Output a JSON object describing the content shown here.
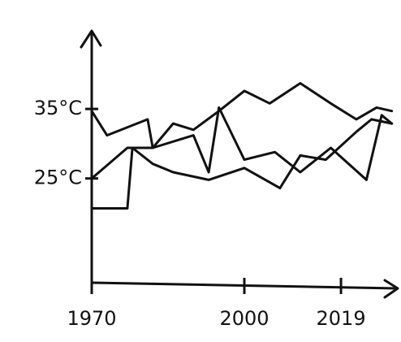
{
  "chart_data": {
    "type": "line",
    "xlim": [
      1970,
      2030
    ],
    "xticks": [
      1970,
      2000,
      2019
    ],
    "ylim": [
      10,
      46
    ],
    "yticks": [
      {
        "value": 25,
        "label": "25°C"
      },
      {
        "value": 35,
        "label": "35°C"
      }
    ],
    "series": [
      {
        "color": "#111111",
        "x": [
          1970,
          1973,
          1981,
          1982,
          1986,
          1990,
          1995,
          2000,
          2005,
          2011,
          2017,
          2022,
          2026,
          2029
        ],
        "values": [
          34.7,
          31.2,
          33.5,
          29.4,
          32.9,
          32,
          34.7,
          37.6,
          35.8,
          38.7,
          35.8,
          33.5,
          35.2,
          34.7
        ]
      },
      {
        "color": "#111111",
        "x": [
          1970,
          1977,
          1982,
          1990,
          1993,
          1995,
          2000,
          2006,
          2011,
          2017,
          2024,
          2027,
          2029
        ],
        "values": [
          25,
          29.4,
          29.4,
          31.2,
          25.9,
          35.2,
          27.7,
          28.8,
          25.9,
          29.4,
          24.8,
          34.1,
          32.9
        ]
      },
      {
        "color": "#111111",
        "x": [
          1970,
          1977,
          1978,
          1982,
          1986,
          1993,
          2000,
          2007,
          2011,
          2016,
          2022,
          2025,
          2029
        ],
        "values": [
          20.7,
          20.7,
          29.4,
          27.1,
          25.9,
          24.8,
          26.5,
          23.6,
          28.3,
          27.7,
          31.7,
          33.5,
          32.9
        ]
      }
    ]
  }
}
